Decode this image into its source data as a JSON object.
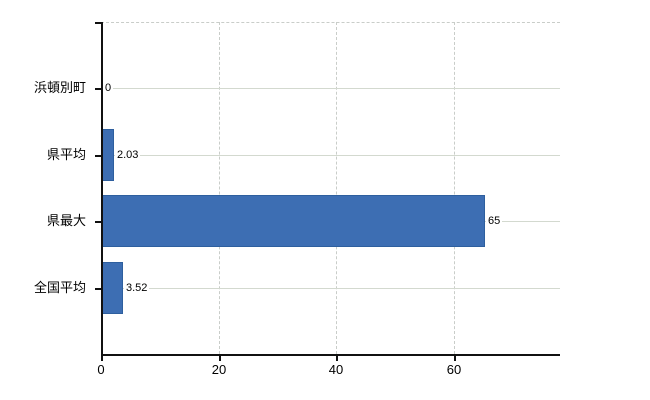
{
  "chart_data": {
    "type": "bar",
    "orientation": "horizontal",
    "title": "",
    "categories": [
      "浜頓別町",
      "県平均",
      "県最大",
      "全国平均"
    ],
    "values": [
      0,
      2.03,
      65,
      3.52
    ],
    "value_labels": [
      "0",
      "2.03",
      "65",
      "3.52"
    ],
    "x_ticks": [
      0,
      20,
      40,
      60
    ],
    "x_tick_labels": [
      "0",
      "20",
      "40",
      "60"
    ],
    "xlim": [
      0,
      78
    ],
    "grid": true,
    "legend": "none",
    "bar_color": "#3d6eb3",
    "bar_border_color": "#2e5f9e"
  },
  "colors": {
    "background": "#ffffff",
    "axis": "#111111",
    "gridline_horizontal": "#d3d9cf",
    "gridline_vertical": "#c9cdc9",
    "text": "#000000"
  },
  "layout_labels": {
    "chart_name": "horizontal-bar-chart"
  }
}
